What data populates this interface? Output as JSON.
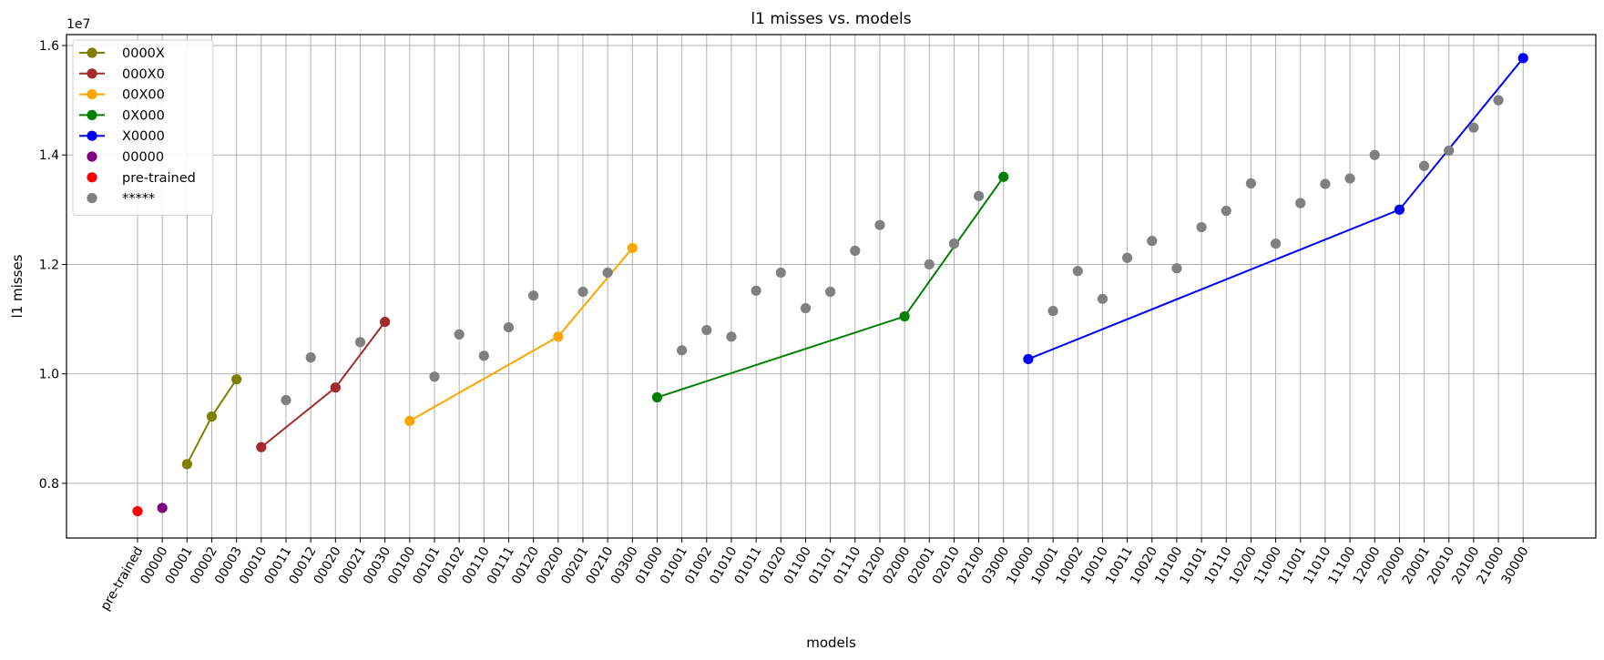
{
  "chart_data": {
    "type": "scatter",
    "title": "l1 misses vs. models",
    "xlabel": "models",
    "ylabel": "l1 misses",
    "y_multiplier_label": "1e7",
    "y_ticks": [
      0.8,
      1.0,
      1.2,
      1.4,
      1.6
    ],
    "y_tick_labels": [
      "0.8",
      "1.0",
      "1.2",
      "1.4",
      "1.6"
    ],
    "ylim": [
      0.7,
      1.62
    ],
    "grid": true,
    "legend_position": "upper-left",
    "categories": [
      "pre-trained",
      "00000",
      "00001",
      "00002",
      "00003",
      "00010",
      "00011",
      "00012",
      "00020",
      "00021",
      "00030",
      "00100",
      "00101",
      "00102",
      "00110",
      "00111",
      "00120",
      "00200",
      "00201",
      "00210",
      "00300",
      "01000",
      "01001",
      "01002",
      "01010",
      "01011",
      "01020",
      "01100",
      "01101",
      "01110",
      "01200",
      "02000",
      "02001",
      "02010",
      "02100",
      "03000",
      "10000",
      "10001",
      "10002",
      "10010",
      "10011",
      "10020",
      "10100",
      "10101",
      "10110",
      "10200",
      "11000",
      "11001",
      "11010",
      "11100",
      "12000",
      "20000",
      "20001",
      "20010",
      "20100",
      "21000",
      "30000"
    ],
    "series": [
      {
        "name": "0000X",
        "kind": "line",
        "color": "#808000",
        "points": [
          [
            "00001",
            0.835
          ],
          [
            "00002",
            0.922
          ],
          [
            "00003",
            0.99
          ]
        ]
      },
      {
        "name": "000X0",
        "kind": "line",
        "color": "#a52a2a",
        "points": [
          [
            "00010",
            0.866
          ],
          [
            "00020",
            0.975
          ],
          [
            "00030",
            1.095
          ]
        ]
      },
      {
        "name": "00X00",
        "kind": "line",
        "color": "#ffa500",
        "points": [
          [
            "00100",
            0.914
          ],
          [
            "00200",
            1.068
          ],
          [
            "00300",
            1.23
          ]
        ]
      },
      {
        "name": "0X000",
        "kind": "line",
        "color": "#008000",
        "points": [
          [
            "01000",
            0.957
          ],
          [
            "02000",
            1.105
          ],
          [
            "03000",
            1.36
          ]
        ]
      },
      {
        "name": "X0000",
        "kind": "line",
        "color": "#0000ff",
        "points": [
          [
            "10000",
            1.027
          ],
          [
            "20000",
            1.3
          ],
          [
            "30000",
            1.577
          ]
        ]
      },
      {
        "name": "00000",
        "kind": "scatter",
        "color": "#800080",
        "points": [
          [
            "00000",
            0.755
          ]
        ]
      },
      {
        "name": "pre-trained",
        "kind": "scatter",
        "color": "#ff0000",
        "points": [
          [
            "pre-trained",
            0.749
          ]
        ]
      },
      {
        "name": "*****",
        "kind": "scatter",
        "color": "#808080",
        "points": [
          [
            "00011",
            0.952
          ],
          [
            "00012",
            1.03
          ],
          [
            "00021",
            1.058
          ],
          [
            "00101",
            0.995
          ],
          [
            "00102",
            1.072
          ],
          [
            "00110",
            1.033
          ],
          [
            "00111",
            1.085
          ],
          [
            "00120",
            1.143
          ],
          [
            "00201",
            1.15
          ],
          [
            "00210",
            1.185
          ],
          [
            "01001",
            1.043
          ],
          [
            "01002",
            1.08
          ],
          [
            "01010",
            1.068
          ],
          [
            "01011",
            1.152
          ],
          [
            "01020",
            1.185
          ],
          [
            "01100",
            1.12
          ],
          [
            "01101",
            1.15
          ],
          [
            "01110",
            1.225
          ],
          [
            "01200",
            1.272
          ],
          [
            "02001",
            1.2
          ],
          [
            "02010",
            1.238
          ],
          [
            "02100",
            1.325
          ],
          [
            "10001",
            1.115
          ],
          [
            "10002",
            1.188
          ],
          [
            "10010",
            1.137
          ],
          [
            "10011",
            1.212
          ],
          [
            "10020",
            1.243
          ],
          [
            "10100",
            1.193
          ],
          [
            "10101",
            1.268
          ],
          [
            "10110",
            1.298
          ],
          [
            "10200",
            1.348
          ],
          [
            "11000",
            1.238
          ],
          [
            "11001",
            1.312
          ],
          [
            "11010",
            1.347
          ],
          [
            "11100",
            1.357
          ],
          [
            "12000",
            1.4
          ],
          [
            "20001",
            1.38
          ],
          [
            "20010",
            1.408
          ],
          [
            "20100",
            1.45
          ],
          [
            "21000",
            1.5
          ]
        ]
      }
    ]
  }
}
